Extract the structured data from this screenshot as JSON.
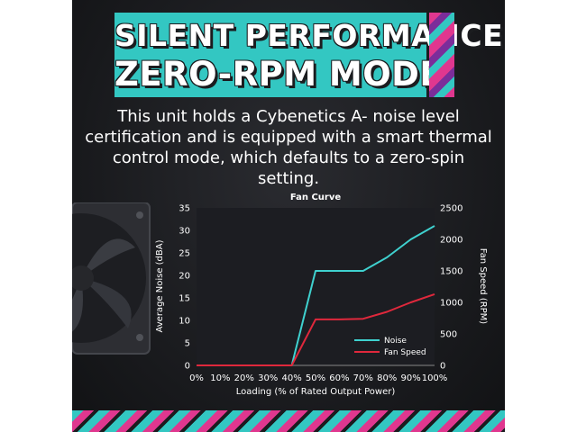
{
  "banner": {
    "line1": "SILENT PERFORMANCE",
    "line2": "ZERO-RPM MODE"
  },
  "description": "This unit holds a Cybenetics A- noise level certification and is equipped with a smart thermal control mode, which defaults to a zero-spin setting.",
  "colors": {
    "banner_bg": "#33c7c2",
    "accent_pink": "#e0378f",
    "accent_purple": "#7b2d9a",
    "plot_bg": "#1c1d22"
  },
  "chart_data": {
    "type": "line",
    "title": "Fan Curve",
    "xlabel": "Loading (% of Rated Output Power)",
    "ylabel_left": "Average Noise (dBA)",
    "ylabel_right": "Fan Speed (RPM)",
    "categories": [
      "0%",
      "10%",
      "20%",
      "30%",
      "40%",
      "50%",
      "60%",
      "70%",
      "80%",
      "90%",
      "100%"
    ],
    "x": [
      0,
      10,
      20,
      30,
      40,
      50,
      60,
      70,
      80,
      90,
      100
    ],
    "ylim_left": [
      0,
      35
    ],
    "ylim_right": [
      0,
      2500
    ],
    "yticks_left": [
      "0",
      "5",
      "10",
      "15",
      "20",
      "25",
      "30",
      "35"
    ],
    "yticks_right": [
      "0",
      "500",
      "1000",
      "1500",
      "2000",
      "2500"
    ],
    "grid": false,
    "legend": "bottom-right",
    "series": [
      {
        "name": "Noise",
        "axis": "left",
        "color": "#3fd1cf",
        "values": [
          0,
          0,
          0,
          0,
          0,
          21,
          21,
          21,
          24,
          28,
          31
        ]
      },
      {
        "name": "Fan Speed",
        "axis": "right",
        "color": "#e0283c",
        "values": [
          0,
          0,
          0,
          0,
          0,
          730,
          730,
          740,
          850,
          1000,
          1130
        ]
      }
    ]
  }
}
